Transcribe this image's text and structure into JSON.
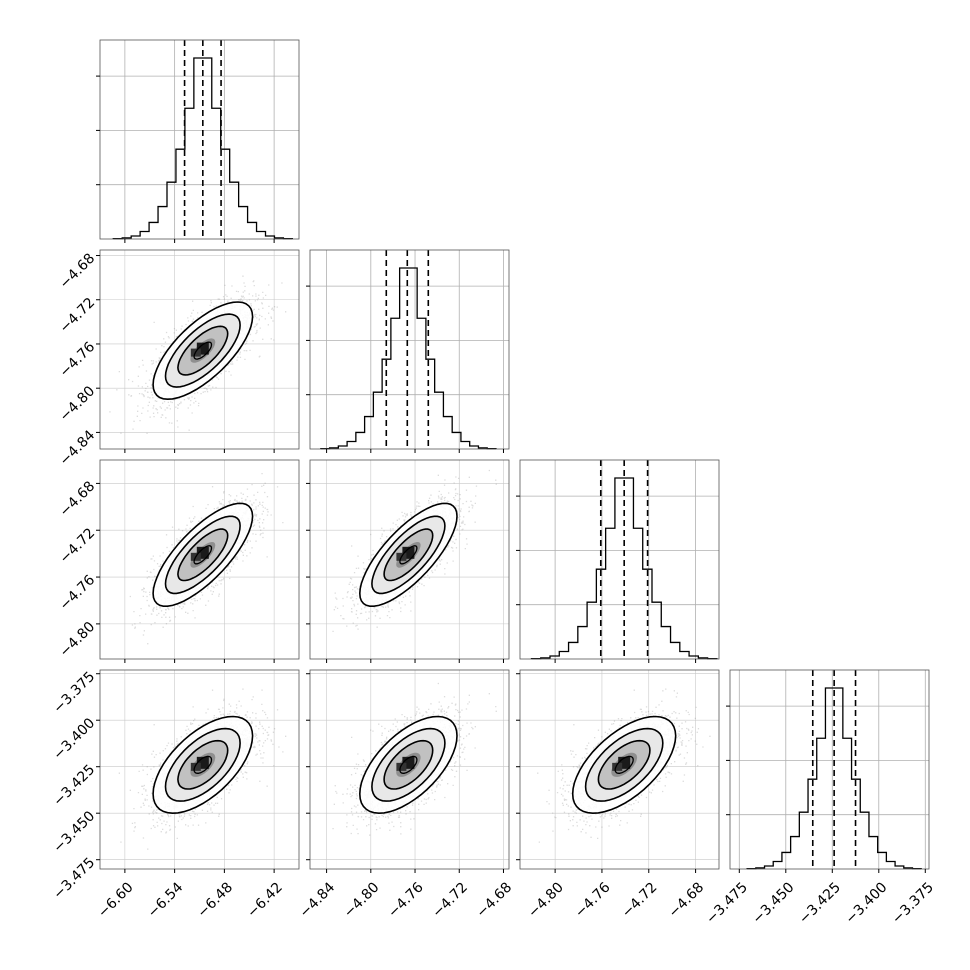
{
  "chart_data": {
    "type": "corner",
    "parameters": [
      {
        "range": [
          -6.63,
          -6.39
        ],
        "ticks": [
          -6.6,
          -6.54,
          -6.48,
          -6.42
        ],
        "tick_labels": [
          "−6.60",
          "−6.54",
          "−6.48",
          "−6.42"
        ],
        "mean": -6.506,
        "sigma": 0.03,
        "quantiles": [
          -6.528,
          -6.506,
          -6.484
        ]
      },
      {
        "range": [
          -4.855,
          -4.675
        ],
        "ticks": [
          -4.84,
          -4.8,
          -4.76,
          -4.72,
          -4.68
        ],
        "tick_labels": [
          "−4.84",
          "−4.80",
          "−4.76",
          "−4.72",
          "−4.68"
        ],
        "mean": -4.766,
        "sigma": 0.022,
        "quantiles": [
          -4.786,
          -4.767,
          -4.748
        ]
      },
      {
        "range": [
          -4.83,
          -4.66
        ],
        "ticks": [
          -4.8,
          -4.76,
          -4.72,
          -4.68
        ],
        "tick_labels": [
          "−4.80",
          "−4.76",
          "−4.72",
          "−4.68"
        ],
        "mean": -4.741,
        "sigma": 0.022,
        "quantiles": [
          -4.761,
          -4.741,
          -4.721
        ]
      },
      {
        "range": [
          -3.48,
          -3.373
        ],
        "ticks": [
          -3.475,
          -3.45,
          -3.425,
          -3.4,
          -3.375
        ],
        "tick_labels": [
          "−3.475",
          "−3.450",
          "−3.425",
          "−3.400",
          "−3.375"
        ],
        "mean": -3.424,
        "sigma": 0.013,
        "quantiles": [
          -3.4355,
          -3.424,
          -3.4125
        ]
      }
    ],
    "correlations": [
      [
        1,
        0.7,
        0.75,
        0.6
      ],
      [
        0.7,
        1,
        0.75,
        0.6
      ],
      [
        0.75,
        0.75,
        1,
        0.6
      ],
      [
        0.6,
        0.6,
        0.6,
        1
      ]
    ],
    "histogram_bins": 20,
    "grid": true,
    "sample_color": "#9a9a9a",
    "contour_color": "#000000"
  }
}
